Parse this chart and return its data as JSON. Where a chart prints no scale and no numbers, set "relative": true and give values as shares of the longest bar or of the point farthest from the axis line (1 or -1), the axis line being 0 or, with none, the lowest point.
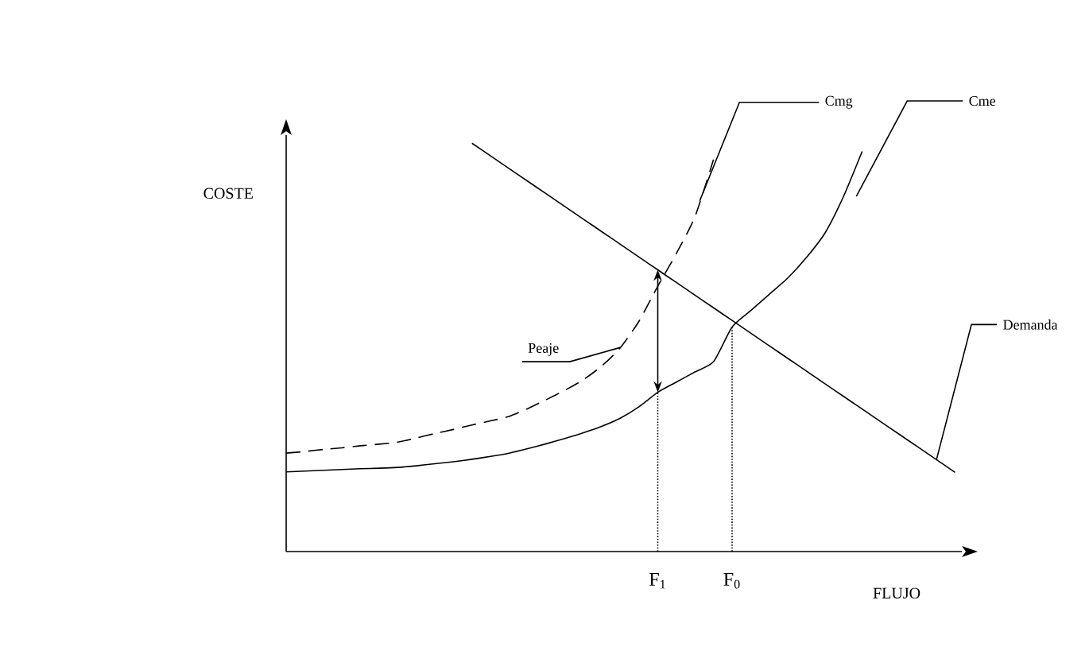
{
  "chart_data": {
    "type": "line",
    "relative": true,
    "xlabel": "FLUJO",
    "ylabel": "COSTE",
    "tick_labels": "x",
    "marker": "none",
    "categories": [
      null,
      null,
      null,
      null,
      null,
      null,
      null,
      null,
      null,
      null,
      null,
      null,
      null,
      null,
      null,
      null,
      null,
      null,
      null,
      null,
      "F$_{1}$",
      null,
      null,
      null,
      "F$_{0}$",
      null,
      null,
      null,
      null,
      null,
      null,
      null,
      null,
      null,
      null,
      null,
      null
    ],
    "series": [
      {
        "name": "Cmg",
        "color": "#000000",
        "line_style": "dashed",
        "values": [
          0.241,
          0.245,
          0.25,
          0.254,
          0.259,
          0.263,
          0.268,
          0.278,
          0.289,
          0.299,
          0.31,
          0.32,
          0.331,
          0.35,
          0.372,
          0.395,
          0.421,
          0.455,
          0.5,
          0.565,
          0.65,
          0.73,
          0.82,
          0.96,
          null,
          null,
          null,
          null,
          null,
          null,
          null,
          null,
          null,
          null,
          null,
          null,
          null
        ]
      },
      {
        "name": "Cme",
        "color": "#000000",
        "line_style": "solid",
        "values": [
          0.195,
          0.197,
          0.199,
          0.201,
          0.203,
          0.204,
          0.206,
          0.21,
          0.215,
          0.22,
          0.226,
          0.233,
          0.241,
          0.252,
          0.264,
          0.277,
          0.291,
          0.307,
          0.327,
          0.355,
          0.39,
          0.415,
          0.44,
          0.465,
          0.55,
          0.59,
          0.63,
          0.67,
          0.72,
          0.78,
          0.87,
          0.98,
          null,
          null,
          null,
          null,
          null
        ]
      },
      {
        "name": "Demanda",
        "color": "#000000",
        "line_style": "solid",
        "values": [
          null,
          null,
          null,
          null,
          null,
          null,
          null,
          null,
          null,
          null,
          1.0,
          0.969,
          0.938,
          0.907,
          0.876,
          0.845,
          0.814,
          0.783,
          0.752,
          0.721,
          0.69,
          0.659,
          0.628,
          0.597,
          0.566,
          0.535,
          0.504,
          0.473,
          0.442,
          0.411,
          0.38,
          0.349,
          0.318,
          0.287,
          0.256,
          0.225,
          0.194
        ]
      }
    ],
    "ref_lines": [
      {
        "axis": "x",
        "value": "F$_{1}$",
        "line_style": "dotted"
      },
      {
        "axis": "x",
        "value": "F$_{0}$",
        "line_style": "dotted"
      }
    ],
    "annotations": [
      "Peaje"
    ]
  }
}
